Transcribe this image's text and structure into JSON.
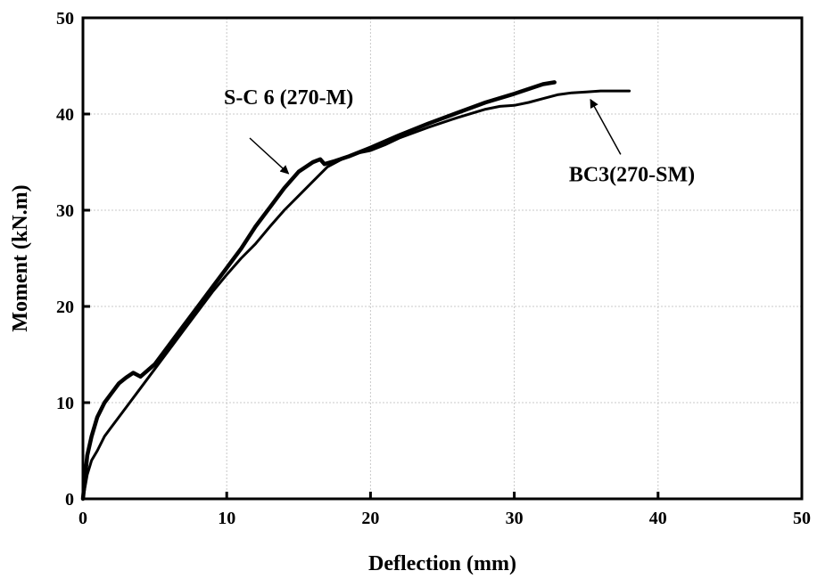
{
  "chart_data": {
    "type": "line",
    "xlabel": "Deflection (mm)",
    "ylabel": "Moment (kN.m)",
    "xlim": [
      0,
      50
    ],
    "ylim": [
      0,
      50
    ],
    "xticks": [
      "0",
      "10",
      "20",
      "30",
      "40",
      "50"
    ],
    "yticks": [
      "0",
      "10",
      "20",
      "30",
      "40",
      "50"
    ],
    "grid": true,
    "series": [
      {
        "color": "#000000",
        "x": [
          0,
          0.3,
          0.6,
          1.0,
          1.5,
          2.0,
          2.5,
          3.0,
          3.5,
          4.0,
          5.0,
          6.0,
          7.0,
          8.0,
          9.0,
          10.0,
          11.0,
          12.0,
          13.0,
          14.0,
          15.0,
          16.0,
          16.5,
          16.8,
          17.5,
          18.5,
          20.0,
          22.0,
          24.0,
          26.0,
          28.0,
          30.0,
          31.0,
          32.0,
          32.8
        ],
        "y": [
          0,
          4.5,
          6.5,
          8.5,
          10.0,
          11.0,
          12.0,
          12.6,
          13.1,
          12.7,
          14.0,
          16.0,
          18.0,
          20.0,
          22.0,
          24.0,
          26.0,
          28.3,
          30.3,
          32.3,
          34.0,
          35.0,
          35.3,
          34.8,
          35.1,
          35.6,
          36.5,
          37.8,
          39.0,
          40.1,
          41.2,
          42.1,
          42.6,
          43.1,
          43.3
        ]
      },
      {
        "color": "#000000",
        "x": [
          0,
          0.3,
          0.6,
          1.0,
          1.5,
          2.0,
          3.0,
          4.0,
          5.0,
          6.0,
          7.0,
          8.0,
          9.0,
          10.0,
          11.0,
          12.0,
          13.0,
          14.0,
          15.0,
          16.0,
          17.0,
          18.0,
          19.0,
          20.0,
          21.0,
          22.0,
          24.0,
          26.0,
          28.0,
          29.0,
          30.0,
          31.0,
          32.0,
          33.0,
          34.0,
          35.0,
          36.0,
          37.0,
          38.0
        ],
        "y": [
          0,
          2.5,
          4.0,
          5.0,
          6.5,
          7.5,
          9.5,
          11.5,
          13.5,
          15.5,
          17.5,
          19.5,
          21.5,
          23.3,
          25.0,
          26.5,
          28.3,
          30.0,
          31.5,
          33.0,
          34.5,
          35.3,
          35.9,
          36.2,
          36.8,
          37.5,
          38.6,
          39.6,
          40.5,
          40.8,
          40.9,
          41.2,
          41.6,
          42.0,
          42.2,
          42.3,
          42.4,
          42.4,
          42.4
        ]
      }
    ],
    "annotations": [
      {
        "text": "S-C 6 (270-M)",
        "text_x": 9.8,
        "text_y": 41.0,
        "arrow_from": [
          11.6,
          37.5
        ],
        "arrow_to": [
          14.3,
          33.8
        ]
      },
      {
        "text": "BC3(270-SM)",
        "text_x": 33.8,
        "text_y": 33.0,
        "arrow_from": [
          37.4,
          35.8
        ],
        "arrow_to": [
          35.3,
          41.5
        ]
      }
    ]
  }
}
